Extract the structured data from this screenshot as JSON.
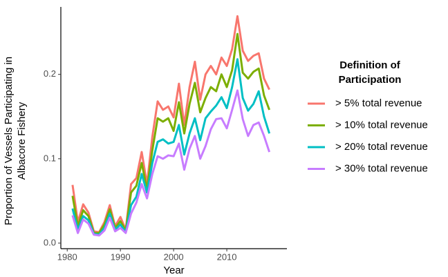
{
  "chart_data": {
    "type": "line",
    "y_label": "Proportion of Vessels Participating in Albacore Fishery",
    "x_label": "Year",
    "legend_title": "Definition of Participation",
    "legend_position": "right",
    "x": [
      1981,
      1982,
      1983,
      1984,
      1985,
      1986,
      1987,
      1988,
      1989,
      1990,
      1991,
      1992,
      1993,
      1994,
      1995,
      1996,
      1997,
      1998,
      1999,
      2000,
      2001,
      2002,
      2003,
      2004,
      2005,
      2006,
      2007,
      2008,
      2009,
      2010,
      2011,
      2012,
      2013,
      2014,
      2015,
      2016,
      2017,
      2018
    ],
    "series": [
      {
        "name": "> 5% total revenue",
        "color": "#f8766d",
        "values": [
          0.069,
          0.025,
          0.046,
          0.036,
          0.014,
          0.013,
          0.025,
          0.045,
          0.02,
          0.031,
          0.016,
          0.07,
          0.077,
          0.108,
          0.07,
          0.126,
          0.168,
          0.158,
          0.162,
          0.149,
          0.189,
          0.14,
          0.185,
          0.215,
          0.17,
          0.2,
          0.21,
          0.2,
          0.22,
          0.21,
          0.23,
          0.269,
          0.228,
          0.216,
          0.222,
          0.225,
          0.195,
          0.182
        ]
      },
      {
        "name": "> 10% total revenue",
        "color": "#7cae00",
        "values": [
          0.056,
          0.02,
          0.039,
          0.032,
          0.012,
          0.012,
          0.022,
          0.04,
          0.018,
          0.026,
          0.015,
          0.06,
          0.068,
          0.095,
          0.064,
          0.11,
          0.148,
          0.144,
          0.148,
          0.133,
          0.167,
          0.13,
          0.165,
          0.19,
          0.155,
          0.172,
          0.185,
          0.18,
          0.2,
          0.185,
          0.205,
          0.248,
          0.202,
          0.195,
          0.203,
          0.207,
          0.175,
          0.158
        ]
      },
      {
        "name": "> 20% total revenue",
        "color": "#00bfc4",
        "values": [
          0.041,
          0.016,
          0.032,
          0.027,
          0.011,
          0.01,
          0.018,
          0.035,
          0.016,
          0.022,
          0.013,
          0.045,
          0.055,
          0.082,
          0.06,
          0.095,
          0.12,
          0.123,
          0.118,
          0.12,
          0.14,
          0.105,
          0.13,
          0.148,
          0.122,
          0.148,
          0.156,
          0.163,
          0.173,
          0.16,
          0.185,
          0.218,
          0.172,
          0.157,
          0.165,
          0.18,
          0.15,
          0.13
        ]
      },
      {
        "name": "> 30% total revenue",
        "color": "#c77cff",
        "values": [
          0.033,
          0.012,
          0.028,
          0.023,
          0.01,
          0.009,
          0.015,
          0.03,
          0.014,
          0.018,
          0.012,
          0.035,
          0.048,
          0.07,
          0.053,
          0.082,
          0.103,
          0.1,
          0.104,
          0.103,
          0.118,
          0.087,
          0.112,
          0.127,
          0.1,
          0.115,
          0.135,
          0.147,
          0.148,
          0.136,
          0.158,
          0.181,
          0.147,
          0.127,
          0.14,
          0.143,
          0.127,
          0.108
        ]
      }
    ],
    "xlim": [
      1978.8,
      2021.3
    ],
    "ylim": [
      -0.0066,
      0.28
    ],
    "xticks": [
      1980,
      1990,
      2000,
      2010
    ],
    "yticks": [
      {
        "value": 0,
        "label": "0.0"
      },
      0.1,
      0.2
    ],
    "grid": false
  }
}
